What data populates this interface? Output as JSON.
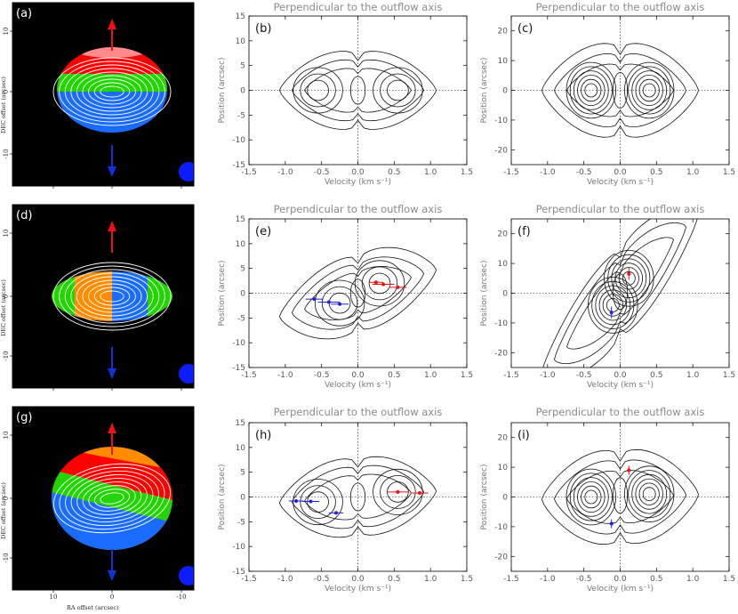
{
  "figure": {
    "maps": [
      {
        "label": "(a)",
        "pattern": "ns"
      },
      {
        "label": "(d)",
        "pattern": "ew"
      },
      {
        "label": "(g)",
        "pattern": "diag"
      }
    ],
    "map_axes": {
      "ylabel": "DEC offset (arcsec)",
      "xlabel": "RA offset (arcsec)",
      "xticks": [
        "10",
        "0",
        "-10"
      ],
      "yticks": [
        "10",
        "0",
        "-10"
      ]
    },
    "map_colors": {
      "red": "#ff0000",
      "orange": "#ff8c00",
      "green": "#22d400",
      "blue": "#1a6cff",
      "beam": "#0a1eff",
      "arrow_red": "#ee1111",
      "arrow_blue": "#1133dd"
    },
    "pv_title": "Perpendicular to the outflow axis",
    "pv_xlabel": "Velocity (km s⁻¹)",
    "pv_ylabel": "Position (arcsec)"
  },
  "chart_data": [
    {
      "type": "contour",
      "label": "(b)",
      "title": "Perpendicular to the outflow axis",
      "xlabel": "Velocity (km s⁻¹)",
      "ylabel": "Position (arcsec)",
      "xlim": [
        -1.5,
        1.5
      ],
      "ylim": [
        -15,
        15
      ],
      "xticks": [
        -1.5,
        -1.0,
        -0.5,
        0.0,
        0.5,
        1.0,
        1.5
      ],
      "yticks": [
        -15,
        -10,
        -5,
        0,
        5,
        10,
        15
      ],
      "peaks": [
        {
          "v": -0.55,
          "p": 0
        },
        {
          "v": 0.55,
          "p": 0
        }
      ],
      "points": []
    },
    {
      "type": "contour",
      "label": "(c)",
      "title": "Perpendicular to the outflow axis",
      "xlabel": "Velocity (km s⁻¹)",
      "ylabel": "Position (arcsec)",
      "xlim": [
        -1.5,
        1.5
      ],
      "ylim": [
        -25,
        25
      ],
      "xticks": [
        -1.5,
        -1.0,
        -0.5,
        0.0,
        0.5,
        1.0,
        1.5
      ],
      "yticks": [
        -20,
        -10,
        0,
        10,
        20
      ],
      "peaks": [
        {
          "v": -0.4,
          "p": 0
        },
        {
          "v": 0.4,
          "p": 0
        }
      ],
      "points": []
    },
    {
      "type": "contour",
      "label": "(e)",
      "title": "Perpendicular to the outflow axis",
      "xlabel": "Velocity (km s⁻¹)",
      "ylabel": "Position (arcsec)",
      "xlim": [
        -1.5,
        1.5
      ],
      "ylim": [
        -15,
        15
      ],
      "xticks": [
        -1.5,
        -1.0,
        -0.5,
        0.0,
        0.5,
        1.0,
        1.5
      ],
      "yticks": [
        -15,
        -10,
        -5,
        0,
        5,
        10,
        15
      ],
      "peaks": [
        {
          "v": -0.25,
          "p": -2
        },
        {
          "v": 0.3,
          "p": 2
        }
      ],
      "points": [
        {
          "v": -0.6,
          "p": -1.2,
          "ve": 0.12,
          "pe": 0.3,
          "color": "blue"
        },
        {
          "v": -0.4,
          "p": -1.8,
          "ve": 0.15,
          "pe": 0.3,
          "color": "blue"
        },
        {
          "v": -0.25,
          "p": -2.2,
          "ve": 0.12,
          "pe": 0.3,
          "color": "blue"
        },
        {
          "v": 0.25,
          "p": 2.2,
          "ve": 0.1,
          "pe": 0.3,
          "color": "red"
        },
        {
          "v": 0.35,
          "p": 1.8,
          "ve": 0.15,
          "pe": 0.3,
          "color": "red"
        },
        {
          "v": 0.55,
          "p": 1.2,
          "ve": 0.12,
          "pe": 0.3,
          "color": "red"
        }
      ]
    },
    {
      "type": "contour",
      "label": "(f)",
      "title": "Perpendicular to the outflow axis",
      "xlabel": "Velocity (km s⁻¹)",
      "ylabel": "Position (arcsec)",
      "xlim": [
        -1.5,
        1.5
      ],
      "ylim": [
        -25,
        25
      ],
      "xticks": [
        -1.5,
        -1.0,
        -0.5,
        0.0,
        0.5,
        1.0,
        1.5
      ],
      "yticks": [
        -20,
        -10,
        0,
        10,
        20
      ],
      "peaks": [
        {
          "v": -0.1,
          "p": -4
        },
        {
          "v": 0.12,
          "p": 5
        }
      ],
      "points": [
        {
          "v": -0.12,
          "p": -6.5,
          "ve": 0.02,
          "pe": 2.0,
          "color": "blue"
        },
        {
          "v": 0.12,
          "p": 6.5,
          "ve": 0.02,
          "pe": 2.0,
          "color": "red"
        }
      ]
    },
    {
      "type": "contour",
      "label": "(h)",
      "title": "Perpendicular to the outflow axis",
      "xlabel": "Velocity (km s⁻¹)",
      "ylabel": "Position (arcsec)",
      "xlim": [
        -1.5,
        1.5
      ],
      "ylim": [
        -15,
        15
      ],
      "xticks": [
        -1.5,
        -1.0,
        -0.5,
        0.0,
        0.5,
        1.0,
        1.5
      ],
      "yticks": [
        -15,
        -10,
        -5,
        0,
        5,
        10,
        15
      ],
      "peaks": [
        {
          "v": -0.55,
          "p": -1
        },
        {
          "v": 0.55,
          "p": 1
        }
      ],
      "points": [
        {
          "v": -0.85,
          "p": -0.8,
          "ve": 0.1,
          "pe": 0.3,
          "color": "blue"
        },
        {
          "v": -0.65,
          "p": -0.9,
          "ve": 0.12,
          "pe": 0.3,
          "color": "blue"
        },
        {
          "v": -0.3,
          "p": -3.2,
          "ve": 0.1,
          "pe": 0.3,
          "color": "blue"
        },
        {
          "v": 0.55,
          "p": 1.0,
          "ve": 0.15,
          "pe": 0.3,
          "color": "red"
        },
        {
          "v": 0.85,
          "p": 0.8,
          "ve": 0.12,
          "pe": 0.3,
          "color": "red"
        }
      ]
    },
    {
      "type": "contour",
      "label": "(i)",
      "title": "Perpendicular to the outflow axis",
      "xlabel": "Velocity (km s⁻¹)",
      "ylabel": "Position (arcsec)",
      "xlim": [
        -1.5,
        1.5
      ],
      "ylim": [
        -25,
        25
      ],
      "xticks": [
        -1.5,
        -1.0,
        -0.5,
        0.0,
        0.5,
        1.0,
        1.5
      ],
      "yticks": [
        -20,
        -10,
        0,
        10,
        20
      ],
      "peaks": [
        {
          "v": -0.4,
          "p": 0
        },
        {
          "v": 0.4,
          "p": 1
        }
      ],
      "points": [
        {
          "v": -0.12,
          "p": -9,
          "ve": 0.03,
          "pe": 1.5,
          "color": "blue"
        },
        {
          "v": 0.12,
          "p": 9,
          "ve": 0.03,
          "pe": 1.5,
          "color": "red"
        }
      ]
    }
  ]
}
